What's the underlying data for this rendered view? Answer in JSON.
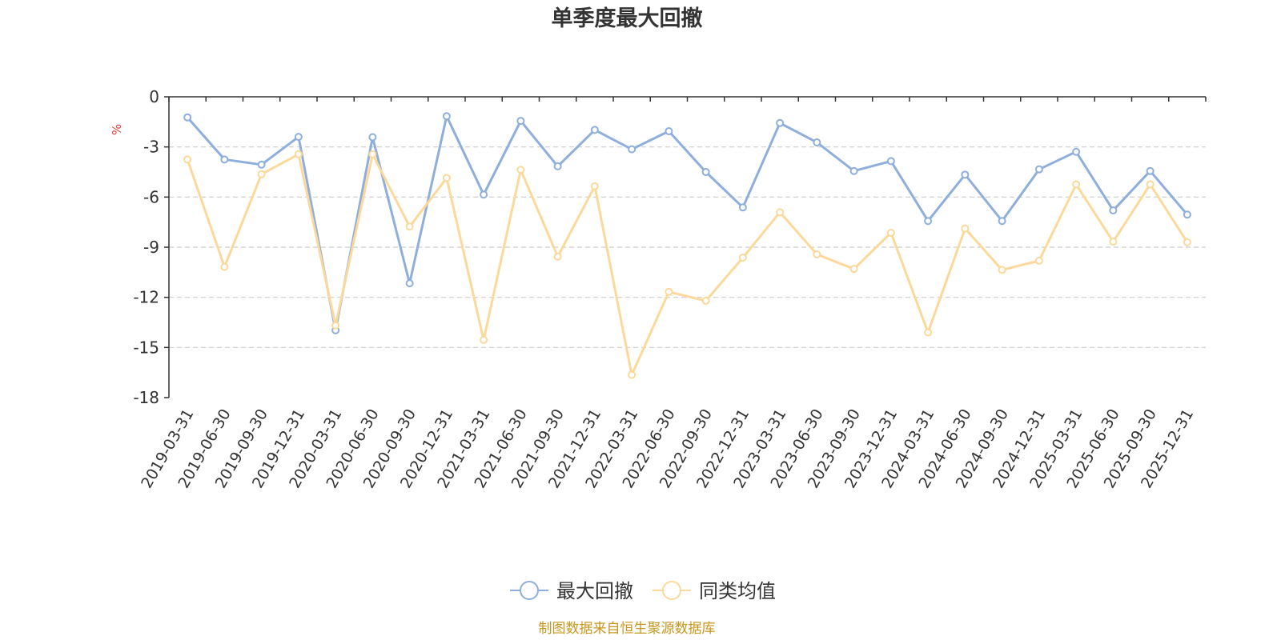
{
  "chart_data": {
    "type": "line",
    "title": "单季度最大回撤",
    "ylabel": "%",
    "xlabel": "",
    "ylim": [
      -18,
      0
    ],
    "yticks": [
      0,
      -3,
      -6,
      -9,
      -12,
      -15,
      -18
    ],
    "grid": true,
    "legend_position": "bottom-center",
    "categories": [
      "2019-03-31",
      "2019-06-30",
      "2019-09-30",
      "2019-12-31",
      "2020-03-31",
      "2020-06-30",
      "2020-09-30",
      "2020-12-31",
      "2021-03-31",
      "2021-06-30",
      "2021-09-30",
      "2021-12-31",
      "2022-03-31",
      "2022-06-30",
      "2022-09-30",
      "2022-12-31",
      "2023-03-31",
      "2023-06-30",
      "2023-09-30",
      "2023-12-31",
      "2024-03-31",
      "2024-06-30",
      "2024-09-30",
      "2024-12-31",
      "2025-03-31",
      "2025-06-30",
      "2025-09-30",
      "2025-12-31"
    ],
    "series": [
      {
        "name": "最大回撤",
        "color": "#8eaedc",
        "values": [
          -1.23,
          -3.75,
          -4.06,
          -2.4,
          -13.97,
          -2.42,
          -11.16,
          -1.16,
          -5.85,
          -1.44,
          -4.16,
          -1.98,
          -3.14,
          -2.06,
          -4.5,
          -6.62,
          -1.57,
          -2.73,
          -4.44,
          -3.85,
          -7.43,
          -4.66,
          -7.43,
          -4.34,
          -3.29,
          -6.8,
          -4.44,
          -7.05
        ]
      },
      {
        "name": "同类均值",
        "color": "#fcd99b",
        "values": [
          -3.75,
          -10.18,
          -4.63,
          -3.44,
          -13.68,
          -3.44,
          -7.77,
          -4.86,
          -14.55,
          -4.37,
          -9.56,
          -5.35,
          -16.64,
          -11.67,
          -12.21,
          -9.62,
          -6.91,
          -9.43,
          -10.3,
          -8.14,
          -14.1,
          -7.88,
          -10.36,
          -9.81,
          -5.24,
          -8.67,
          -5.24,
          -8.7
        ]
      }
    ]
  },
  "footer": {
    "source": "制图数据来自恒生聚源数据库",
    "source_color": "#c8961e"
  },
  "colors": {
    "axis": "#333333",
    "grid": "#cccccc",
    "ylabel": "#e53935",
    "text": "#333333"
  }
}
